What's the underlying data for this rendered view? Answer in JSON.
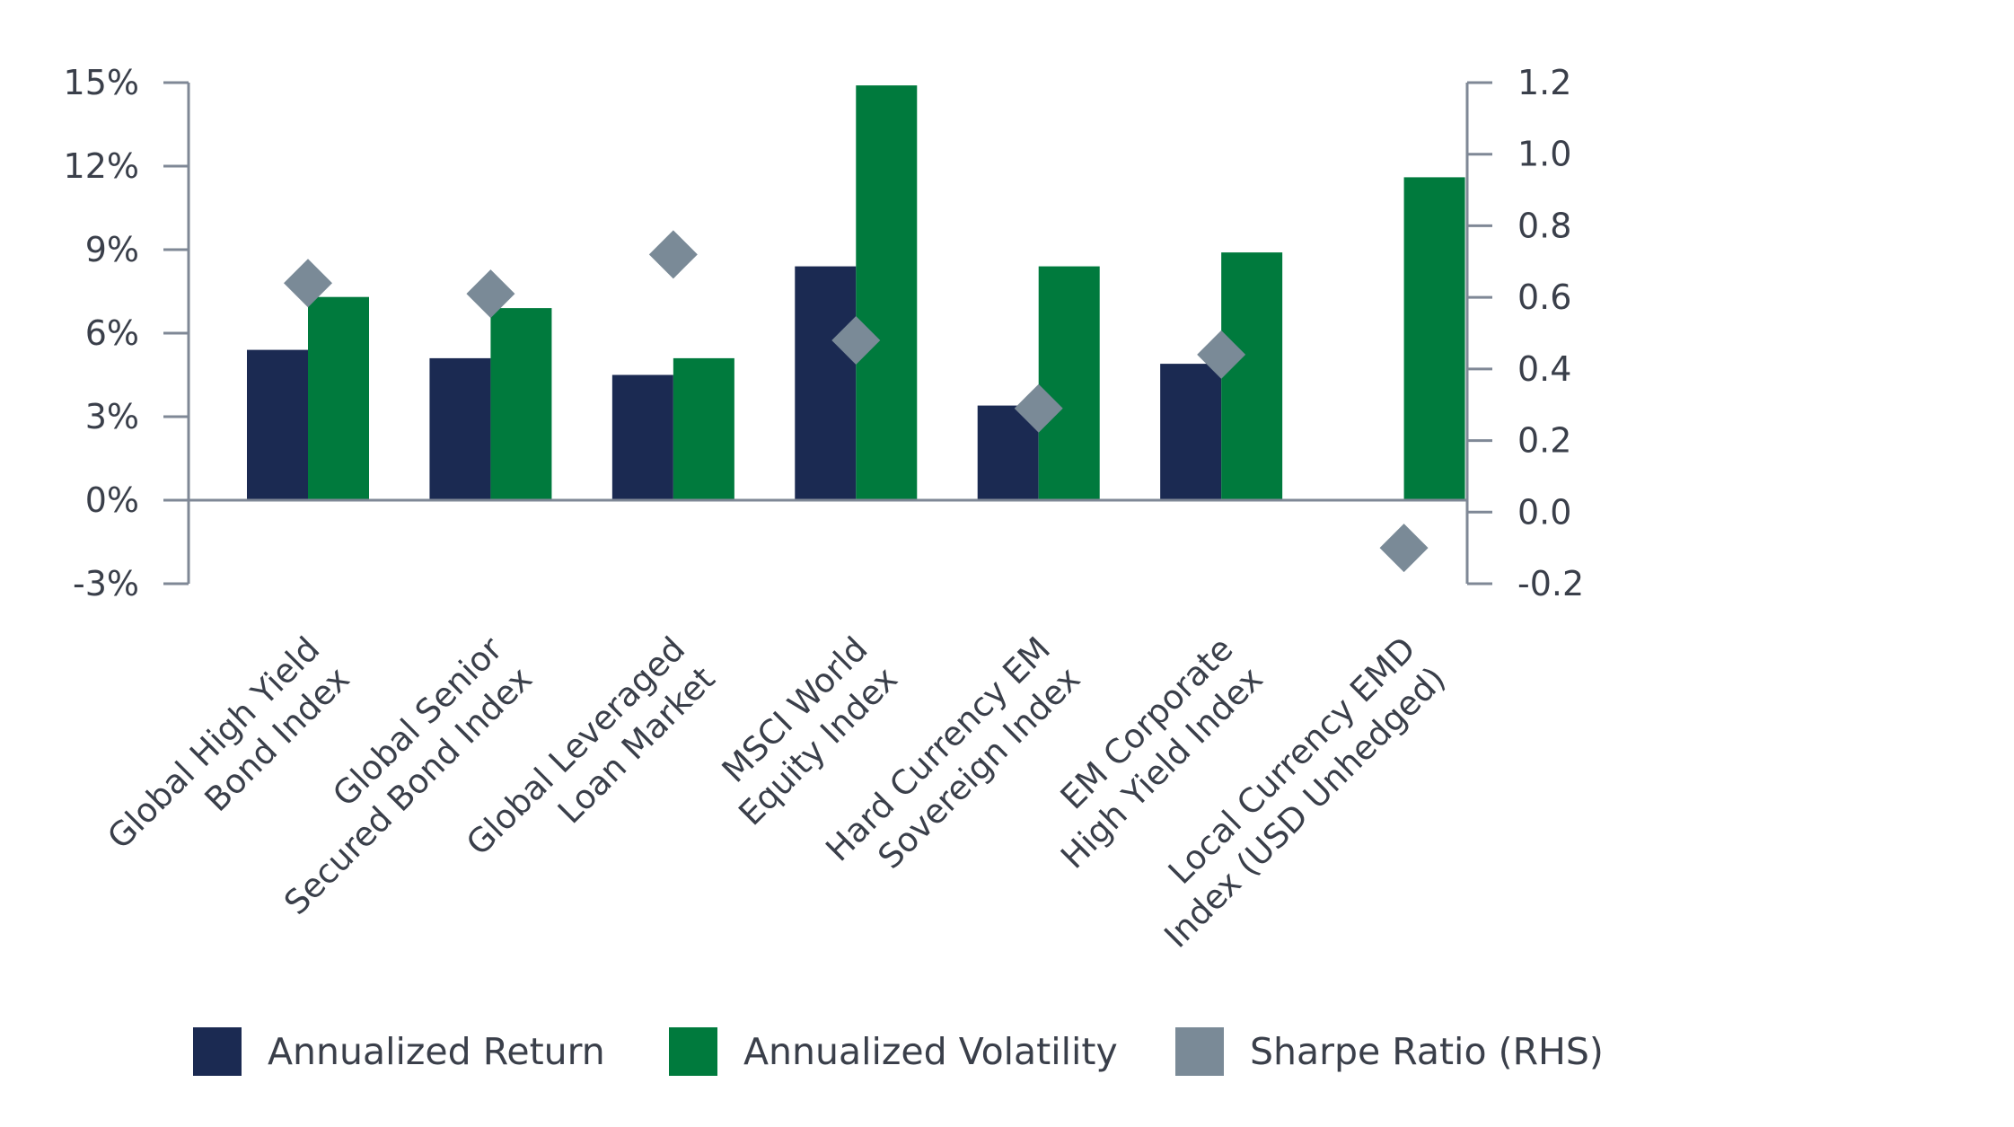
{
  "chart_data": {
    "type": "bar",
    "title": "",
    "categories": [
      [
        "Global High Yield",
        "Bond Index"
      ],
      [
        "Global Senior",
        "Secured Bond Index"
      ],
      [
        "Global Leveraged",
        "Loan Market"
      ],
      [
        "MSCI World",
        "Equity Index"
      ],
      [
        "Hard Currency EM",
        "Sovereign Index"
      ],
      [
        "EM Corporate",
        "High Yield Index"
      ],
      [
        "Local Currency EMD",
        "Index (USD Unhedged)"
      ]
    ],
    "series": [
      {
        "name": "Annualized Return",
        "axis": "left",
        "kind": "bar",
        "color": "#1b2a52",
        "values": [
          5.4,
          5.1,
          4.5,
          8.4,
          3.4,
          4.9,
          0.0
        ]
      },
      {
        "name": "Annualized Volatility",
        "axis": "left",
        "kind": "bar",
        "color": "#007a3d",
        "values": [
          7.3,
          6.9,
          5.1,
          14.9,
          8.4,
          8.9,
          11.6
        ]
      },
      {
        "name": "Sharpe Ratio (RHS)",
        "axis": "right",
        "kind": "marker",
        "marker": "diamond",
        "color": "#7a8a97",
        "values": [
          0.64,
          0.61,
          0.72,
          0.48,
          0.29,
          0.44,
          -0.1
        ]
      }
    ],
    "left_axis": {
      "range": [
        -3,
        15
      ],
      "ticks": [
        15,
        12,
        9,
        6,
        3,
        0,
        -3
      ],
      "tick_labels": [
        "15%",
        "12%",
        "9%",
        "6%",
        "3%",
        "0%",
        "-3%"
      ]
    },
    "right_axis": {
      "range": [
        -0.2,
        1.2
      ],
      "ticks": [
        1.2,
        1.0,
        0.8,
        0.6,
        0.4,
        0.2,
        0.0,
        -0.2
      ],
      "tick_labels": [
        "1.2",
        "1.0",
        "0.8",
        "0.6",
        "0.4",
        "0.2",
        "0.0",
        "-0.2"
      ]
    },
    "legend_position": "bottom",
    "grid": false
  }
}
